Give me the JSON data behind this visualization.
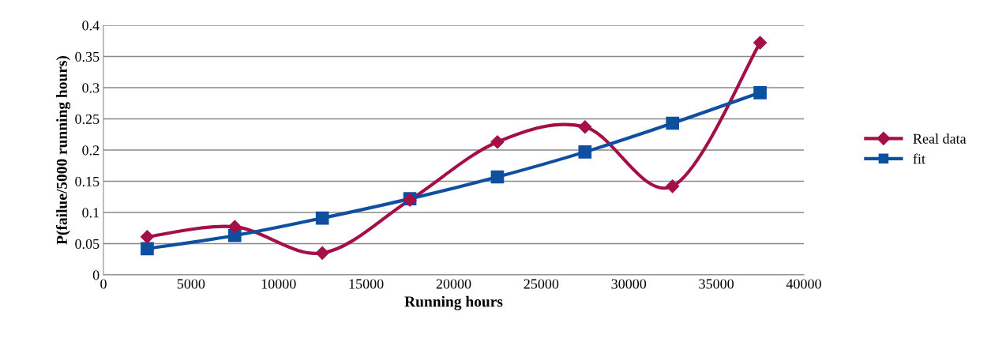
{
  "chart_data": {
    "type": "line",
    "xlabel": "Running hours",
    "ylabel": "P(failue/5000 running hours)",
    "x": [
      2500,
      7500,
      12500,
      17500,
      22500,
      27500,
      32500,
      37500
    ],
    "series": [
      {
        "name": "Real data",
        "color": "#a50f47",
        "marker": "diamond",
        "values": [
          0.061,
          0.077,
          0.035,
          0.12,
          0.213,
          0.237,
          0.142,
          0.372
        ]
      },
      {
        "name": "fit",
        "color": "#0f4fa0",
        "marker": "square",
        "values": [
          0.042,
          0.063,
          0.091,
          0.122,
          0.157,
          0.197,
          0.243,
          0.292
        ]
      }
    ],
    "xlim": [
      0,
      40000
    ],
    "xticks": [
      0,
      5000,
      10000,
      15000,
      20000,
      25000,
      30000,
      35000,
      40000
    ],
    "ylim": [
      0,
      0.4
    ],
    "yticks": [
      0,
      0.05,
      0.1,
      0.15,
      0.2,
      0.25,
      0.3,
      0.35,
      0.4
    ],
    "grid": "y",
    "legend": "right",
    "line_style": "solid"
  }
}
